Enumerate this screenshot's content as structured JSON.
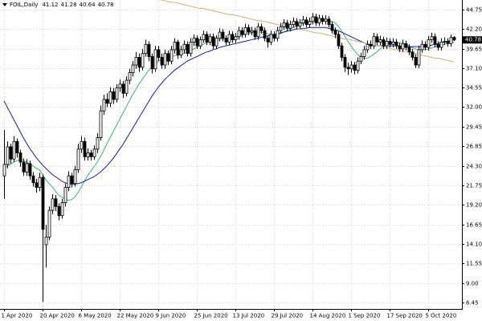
{
  "chart_data": {
    "type": "candlestick",
    "title": "FOIL,Daily",
    "categories": [
      "1 Apr 2020",
      null,
      null,
      null,
      null,
      null,
      null,
      null,
      null,
      null,
      null,
      null,
      "20 Apr 2020",
      null,
      null,
      null,
      null,
      null,
      null,
      null,
      null,
      null,
      null,
      null,
      "6 May 2020",
      null,
      null,
      null,
      null,
      null,
      null,
      null,
      null,
      null,
      null,
      null,
      "22 May 2020",
      null,
      null,
      null,
      null,
      null,
      null,
      null,
      null,
      null,
      null,
      null,
      "9 Jun 2020",
      null,
      null,
      null,
      null,
      null,
      null,
      null,
      null,
      null,
      null,
      null,
      "25 Jun 2020",
      null,
      null,
      null,
      null,
      null,
      null,
      null,
      null,
      null,
      null,
      null,
      "13 Jul 2020",
      null,
      null,
      null,
      null,
      null,
      null,
      null,
      null,
      null,
      null,
      null,
      "29 Jul 2020",
      null,
      null,
      null,
      null,
      null,
      null,
      null,
      null,
      null,
      null,
      null,
      "14 Aug 2020",
      null,
      null,
      null,
      null,
      null,
      null,
      null,
      null,
      null,
      null,
      null,
      "1 Sep 2020",
      null,
      null,
      null,
      null,
      null,
      null,
      null,
      null,
      null,
      null,
      null,
      "17 Sep 2020",
      null,
      null,
      null,
      null,
      null,
      null,
      null,
      null,
      null,
      null,
      null,
      "5 Oct 2020",
      null,
      null,
      null,
      null,
      null,
      null,
      null,
      null
    ],
    "open": [
      23.0,
      24.5,
      26.8,
      25.2,
      27.5,
      26.0,
      24.8,
      23.5,
      24.6,
      23.0,
      22.1,
      21.5,
      22.8,
      14.0,
      15.0,
      18.5,
      20.0,
      19.0,
      17.8,
      19.5,
      21.5,
      23.0,
      22.0,
      23.8,
      26.5,
      27.5,
      25.5,
      26.0,
      25.5,
      26.5,
      28.0,
      31.5,
      33.0,
      32.5,
      34.0,
      33.0,
      34.5,
      35.0,
      33.8,
      35.5,
      36.5,
      37.5,
      38.5,
      37.2,
      39.0,
      40.2,
      38.6,
      37.0,
      39.5,
      38.5,
      37.5,
      39.0,
      38.0,
      39.5,
      40.5,
      38.8,
      39.5,
      40.2,
      39.0,
      40.5,
      41.0,
      40.0,
      40.8,
      41.5,
      40.5,
      41.2,
      40.0,
      41.0,
      41.8,
      41.0,
      40.5,
      41.5,
      40.8,
      41.2,
      42.0,
      41.5,
      42.4,
      41.8,
      42.0,
      41.2,
      42.5,
      42.0,
      41.0,
      40.5,
      41.5,
      41.0,
      42.0,
      42.5,
      43.0,
      42.3,
      42.8,
      43.2,
      42.6,
      43.0,
      43.4,
      42.8,
      43.2,
      43.8,
      43.0,
      43.6,
      43.2,
      43.5,
      42.8,
      42.0,
      41.5,
      40.0,
      38.5,
      37.2,
      37.0,
      37.5,
      36.8,
      38.0,
      38.6,
      39.5,
      40.2,
      40.0,
      41.2,
      40.5,
      40.8,
      40.0,
      40.6,
      40.2,
      40.5,
      40.0,
      39.6,
      40.3,
      39.8,
      39.2,
      38.5,
      37.5,
      39.5,
      40.2,
      39.8,
      40.8,
      41.2,
      40.2,
      39.8,
      40.5,
      40.6,
      40.3,
      41.12
    ],
    "high": [
      29.0,
      27.5,
      27.2,
      28.2,
      27.9,
      26.4,
      25.3,
      25.2,
      25.0,
      23.5,
      22.6,
      23.4,
      23.2,
      16.6,
      19.0,
      20.6,
      20.5,
      19.4,
      20.0,
      22.0,
      23.6,
      23.4,
      24.3,
      27.2,
      28.2,
      28.0,
      26.6,
      26.4,
      27.0,
      28.6,
      32.2,
      33.6,
      33.8,
      34.6,
      34.5,
      35.0,
      35.6,
      35.4,
      36.0,
      37.0,
      38.0,
      39.2,
      39.0,
      39.6,
      40.8,
      40.6,
      39.0,
      40.0,
      40.0,
      39.0,
      39.5,
      39.4,
      40.0,
      41.0,
      40.8,
      40.0,
      40.7,
      40.6,
      41.0,
      41.5,
      41.4,
      41.2,
      42.0,
      41.9,
      41.6,
      41.6,
      41.4,
      42.3,
      42.2,
      41.4,
      42.0,
      41.9,
      41.7,
      42.5,
      42.4,
      42.9,
      42.8,
      42.5,
      42.4,
      43.0,
      42.9,
      42.4,
      41.4,
      42.0,
      41.9,
      42.5,
      43.0,
      43.5,
      43.4,
      43.3,
      43.7,
      43.6,
      43.5,
      43.9,
      43.8,
      43.7,
      44.3,
      44.2,
      44.1,
      44.0,
      44.0,
      43.9,
      43.2,
      42.4,
      41.9,
      40.4,
      38.9,
      37.8,
      38.0,
      37.9,
      38.5,
      39.1,
      40.0,
      40.7,
      40.7,
      41.7,
      41.6,
      41.3,
      41.2,
      41.1,
      41.0,
      41.0,
      40.9,
      40.4,
      40.8,
      40.7,
      40.2,
      39.6,
      38.9,
      40.0,
      40.7,
      40.6,
      41.3,
      41.7,
      41.6,
      40.6,
      41.0,
      41.1,
      41.0,
      41.5,
      41.28
    ],
    "low": [
      20.0,
      24.0,
      24.6,
      24.8,
      25.4,
      24.2,
      23.0,
      23.0,
      22.5,
      21.6,
      20.8,
      21.0,
      6.5,
      11.0,
      14.6,
      18.0,
      18.4,
      17.2,
      17.4,
      19.0,
      21.0,
      21.5,
      21.6,
      23.4,
      26.0,
      25.0,
      25.0,
      25.0,
      25.1,
      26.0,
      27.6,
      31.0,
      32.0,
      32.0,
      32.4,
      32.6,
      34.0,
      33.2,
      33.4,
      35.0,
      36.0,
      37.0,
      36.6,
      36.8,
      38.6,
      38.0,
      36.4,
      36.6,
      38.0,
      37.0,
      37.0,
      37.5,
      37.6,
      39.0,
      38.3,
      38.4,
      39.0,
      38.6,
      38.6,
      40.0,
      39.6,
      39.6,
      40.4,
      40.1,
      40.1,
      39.6,
      39.6,
      40.6,
      40.6,
      40.1,
      40.1,
      40.4,
      40.4,
      40.8,
      41.1,
      41.1,
      41.4,
      41.4,
      40.8,
      40.8,
      41.6,
      40.6,
      39.8,
      40.1,
      40.6,
      40.6,
      41.6,
      42.1,
      41.9,
      41.9,
      42.4,
      42.2,
      42.2,
      42.6,
      42.4,
      42.4,
      42.8,
      42.6,
      42.6,
      42.8,
      42.8,
      42.4,
      41.6,
      41.0,
      39.6,
      38.0,
      36.6,
      36.2,
      36.5,
      36.3,
      36.4,
      37.6,
      38.2,
      39.1,
      39.6,
      39.6,
      40.1,
      40.1,
      39.6,
      39.6,
      39.8,
      39.8,
      39.6,
      39.2,
      39.2,
      39.4,
      38.8,
      38.1,
      37.1,
      37.1,
      39.1,
      39.4,
      39.4,
      40.4,
      39.8,
      39.4,
      39.4,
      40.1,
      39.9,
      39.9,
      40.64
    ],
    "close": [
      24.5,
      26.8,
      25.2,
      27.5,
      26.0,
      24.8,
      23.5,
      24.6,
      23.0,
      22.1,
      21.5,
      22.8,
      16.0,
      15.0,
      18.5,
      20.0,
      19.0,
      17.8,
      19.5,
      21.5,
      23.0,
      22.0,
      23.8,
      26.5,
      27.5,
      25.5,
      26.0,
      25.5,
      26.5,
      28.0,
      31.5,
      33.0,
      32.5,
      34.0,
      33.0,
      34.5,
      35.0,
      33.8,
      35.5,
      36.5,
      37.5,
      38.5,
      37.2,
      39.0,
      40.2,
      38.6,
      37.0,
      39.5,
      38.5,
      37.5,
      39.0,
      38.0,
      39.5,
      40.5,
      38.8,
      39.5,
      40.2,
      39.0,
      40.5,
      41.0,
      40.0,
      40.8,
      41.5,
      40.5,
      41.2,
      40.0,
      41.0,
      41.8,
      41.0,
      40.5,
      41.5,
      40.8,
      41.2,
      42.0,
      41.5,
      42.4,
      41.8,
      42.0,
      41.2,
      42.5,
      42.0,
      41.0,
      40.5,
      41.5,
      41.0,
      42.0,
      42.5,
      43.0,
      42.3,
      42.8,
      43.2,
      42.6,
      43.0,
      43.4,
      42.8,
      43.2,
      43.8,
      43.0,
      43.6,
      43.2,
      43.5,
      42.8,
      42.0,
      41.5,
      40.0,
      38.5,
      37.2,
      37.0,
      37.5,
      36.8,
      38.0,
      38.6,
      39.5,
      40.2,
      40.0,
      41.2,
      40.5,
      40.8,
      40.0,
      40.6,
      40.2,
      40.5,
      40.0,
      39.6,
      40.3,
      39.8,
      39.2,
      38.5,
      37.5,
      39.5,
      40.2,
      39.8,
      40.8,
      41.2,
      40.2,
      39.8,
      40.5,
      40.6,
      40.3,
      41.1,
      40.78
    ],
    "up_color": "#ffffff",
    "down_color": "#000000",
    "lines": [
      {
        "color": "#3cb371",
        "values": [
          24.0,
          24.3,
          24.5,
          24.8,
          25.0,
          25.1,
          25.0,
          24.8,
          24.6,
          24.3,
          24.0,
          23.8,
          23.2,
          22.5,
          22.0,
          21.6,
          21.0,
          20.5,
          20.2,
          20.0,
          19.8,
          19.9,
          20.2,
          20.8,
          21.5,
          22.3,
          23.0,
          23.6,
          24.2,
          24.8,
          25.5,
          26.3,
          27.2,
          28.0,
          28.8,
          29.6,
          30.4,
          31.2,
          32.0,
          32.8,
          33.6,
          34.3,
          35.0,
          35.6,
          36.2,
          36.8,
          37.2,
          37.6,
          38.0,
          38.2,
          38.4,
          38.5,
          38.6,
          38.7,
          38.8,
          38.9,
          39.0,
          39.2,
          39.4,
          39.6,
          39.8,
          40.0,
          40.2,
          40.4,
          40.5,
          40.6,
          40.7,
          40.8,
          40.9,
          41.0,
          41.0,
          41.1,
          41.2,
          41.3,
          41.4,
          41.5,
          41.6,
          41.7,
          41.8,
          41.8,
          41.8,
          41.7,
          41.6,
          41.5,
          41.5,
          41.5,
          41.6,
          41.8,
          42.0,
          42.2,
          42.4,
          42.6,
          42.8,
          42.9,
          43.0,
          43.1,
          43.2,
          43.3,
          43.3,
          43.3,
          43.4,
          43.3,
          43.2,
          43.0,
          42.6,
          42.0,
          41.3,
          40.6,
          40.0,
          39.4,
          38.9,
          38.6,
          38.4,
          38.4,
          38.6,
          38.9,
          39.2,
          39.6,
          39.9,
          40.2,
          40.4,
          40.5,
          40.5,
          40.4,
          40.3,
          40.2,
          40.0,
          39.8,
          39.6,
          39.5,
          39.5,
          39.5,
          39.6,
          39.7,
          39.9,
          40.0,
          40.1,
          40.2,
          40.3,
          40.4,
          40.5
        ]
      },
      {
        "color": "#1c1c96",
        "values": [
          32.8,
          32.0,
          31.2,
          30.4,
          29.6,
          28.8,
          28.0,
          27.3,
          26.6,
          26.0,
          25.4,
          24.9,
          24.4,
          24.0,
          23.6,
          23.2,
          22.9,
          22.6,
          22.3,
          22.1,
          22.0,
          21.9,
          21.9,
          22.0,
          22.1,
          22.3,
          22.5,
          22.7,
          22.9,
          23.2,
          23.5,
          23.9,
          24.3,
          24.8,
          25.3,
          25.9,
          26.5,
          27.1,
          27.8,
          28.5,
          29.2,
          29.9,
          30.6,
          31.3,
          32.0,
          32.7,
          33.4,
          34.0,
          34.6,
          35.1,
          35.6,
          36.0,
          36.4,
          36.8,
          37.1,
          37.4,
          37.7,
          38.0,
          38.2,
          38.4,
          38.6,
          38.8,
          39.0,
          39.2,
          39.3,
          39.5,
          39.6,
          39.8,
          39.9,
          40.0,
          40.1,
          40.2,
          40.3,
          40.4,
          40.5,
          40.6,
          40.7,
          40.8,
          40.9,
          41.0,
          41.1,
          41.2,
          41.3,
          41.4,
          41.5,
          41.6,
          41.7,
          41.8,
          41.9,
          42.0,
          42.1,
          42.2,
          42.2,
          42.3,
          42.3,
          42.4,
          42.4,
          42.4,
          42.4,
          42.4,
          42.4,
          42.3,
          42.2,
          42.1,
          42.0,
          41.8,
          41.6,
          41.4,
          41.2,
          41.0,
          40.8,
          40.6,
          40.4,
          40.3,
          40.2,
          40.1,
          40.0,
          40.0,
          40.0,
          40.0,
          40.0,
          40.0,
          40.0,
          40.0,
          39.9,
          39.9,
          39.9,
          39.9,
          39.9,
          39.9,
          39.9,
          40.0,
          40.0,
          40.1,
          40.2,
          40.3,
          40.4,
          40.5,
          40.6,
          40.7,
          40.8
        ]
      },
      {
        "color": "#c8b27a",
        "values": [
          null,
          null,
          null,
          null,
          null,
          null,
          null,
          null,
          null,
          null,
          null,
          null,
          null,
          null,
          null,
          null,
          null,
          null,
          null,
          null,
          null,
          null,
          null,
          null,
          null,
          null,
          null,
          null,
          null,
          null,
          null,
          null,
          null,
          null,
          null,
          null,
          null,
          null,
          null,
          null,
          null,
          null,
          null,
          null,
          null,
          null,
          null,
          null,
          46.1,
          46.0,
          45.9,
          45.8,
          45.7,
          45.7,
          45.6,
          45.5,
          45.4,
          45.3,
          45.2,
          45.1,
          45.0,
          44.9,
          44.9,
          44.8,
          44.7,
          44.6,
          44.5,
          44.4,
          44.3,
          44.2,
          44.1,
          44.1,
          44.0,
          43.9,
          43.8,
          43.7,
          43.6,
          43.5,
          43.4,
          43.3,
          43.3,
          43.2,
          43.1,
          43.0,
          42.9,
          42.8,
          42.7,
          42.6,
          42.5,
          42.5,
          42.4,
          42.3,
          42.2,
          42.1,
          42.0,
          41.9,
          41.8,
          41.7,
          41.7,
          41.6,
          41.5,
          41.4,
          41.3,
          41.2,
          41.1,
          41.0,
          40.9,
          40.9,
          40.8,
          40.7,
          40.6,
          40.5,
          40.4,
          40.3,
          40.2,
          40.1,
          40.0,
          40.0,
          39.9,
          39.8,
          39.7,
          39.6,
          39.5,
          39.4,
          39.3,
          39.2,
          39.2,
          39.1,
          39.0,
          38.9,
          38.8,
          38.7,
          38.6,
          38.5,
          38.4,
          38.4,
          38.3,
          38.2,
          38.1,
          38.0,
          37.9
        ]
      }
    ],
    "ylim": [
      5.6,
      46.0
    ],
    "yticks": [
      {
        "value": 44.75,
        "label": "44.75"
      },
      {
        "value": 42.2,
        "label": "42.20"
      },
      {
        "value": 39.65,
        "label": "39.65"
      },
      {
        "value": 37.1,
        "label": "37.10"
      },
      {
        "value": 34.55,
        "label": "34.55"
      },
      {
        "value": 32.0,
        "label": "32.00"
      },
      {
        "value": 29.45,
        "label": "29.45"
      },
      {
        "value": 26.85,
        "label": "26.85"
      },
      {
        "value": 24.3,
        "label": "24.30"
      },
      {
        "value": 21.75,
        "label": "21.75"
      },
      {
        "value": 19.2,
        "label": "19.20"
      },
      {
        "value": 16.65,
        "label": "16.65"
      },
      {
        "value": 14.1,
        "label": "14.10"
      },
      {
        "value": 11.55,
        "label": "11.55"
      },
      {
        "value": 9.0,
        "label": "9.00"
      },
      {
        "value": 6.45,
        "label": "6.45"
      }
    ],
    "grid": true
  }
}
